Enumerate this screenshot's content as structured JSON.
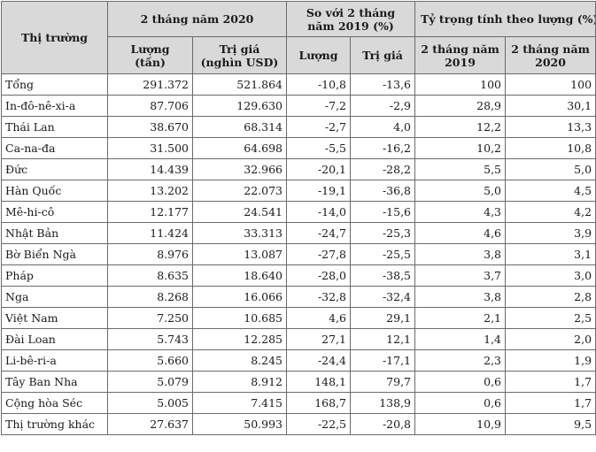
{
  "headers": {
    "market": "Thị trường",
    "period_2020": "2 tháng năm 2020",
    "compare": "So với 2 tháng năm 2019 (%)",
    "share": "Tỷ trọng tính theo lượng (%)",
    "volume": "Lượng (tấn)",
    "value": "Trị giá (nghìn USD)",
    "cmp_volume": "Lượng",
    "cmp_value": "Trị giá",
    "share_2019": "2 tháng năm 2019",
    "share_2020": "2 tháng năm 2020"
  },
  "rows": [
    {
      "name": "Tổng",
      "volume": "291.372",
      "value": "521.864",
      "cmp_volume": "-10,8",
      "cmp_value": "-13,6",
      "share_2019": "100",
      "share_2020": "100"
    },
    {
      "name": "In-đô-nê-xi-a",
      "volume": "87.706",
      "value": "129.630",
      "cmp_volume": "-7,2",
      "cmp_value": "-2,9",
      "share_2019": "28,9",
      "share_2020": "30,1"
    },
    {
      "name": "Thái Lan",
      "volume": "38.670",
      "value": "68.314",
      "cmp_volume": "-2,7",
      "cmp_value": "4,0",
      "share_2019": "12,2",
      "share_2020": "13,3"
    },
    {
      "name": "Ca-na-đa",
      "volume": "31.500",
      "value": "64.698",
      "cmp_volume": "-5,5",
      "cmp_value": "-16,2",
      "share_2019": "10,2",
      "share_2020": "10,8"
    },
    {
      "name": "Đức",
      "volume": "14.439",
      "value": "32.966",
      "cmp_volume": "-20,1",
      "cmp_value": "-28,2",
      "share_2019": "5,5",
      "share_2020": "5,0"
    },
    {
      "name": "Hàn Quốc",
      "volume": "13.202",
      "value": "22.073",
      "cmp_volume": "-19,1",
      "cmp_value": "-36,8",
      "share_2019": "5,0",
      "share_2020": "4,5"
    },
    {
      "name": "Mê-hi-cô",
      "volume": "12.177",
      "value": "24.541",
      "cmp_volume": "-14,0",
      "cmp_value": "-15,6",
      "share_2019": "4,3",
      "share_2020": "4,2"
    },
    {
      "name": "Nhật Bản",
      "volume": "11.424",
      "value": "33.313",
      "cmp_volume": "-24,7",
      "cmp_value": "-25,3",
      "share_2019": "4,6",
      "share_2020": "3,9"
    },
    {
      "name": "Bờ Biển Ngà",
      "volume": "8.976",
      "value": "13.087",
      "cmp_volume": "-27,8",
      "cmp_value": "-25,5",
      "share_2019": "3,8",
      "share_2020": "3,1"
    },
    {
      "name": "Pháp",
      "volume": "8.635",
      "value": "18.640",
      "cmp_volume": "-28,0",
      "cmp_value": "-38,5",
      "share_2019": "3,7",
      "share_2020": "3,0"
    },
    {
      "name": "Nga",
      "volume": "8.268",
      "value": "16.066",
      "cmp_volume": "-32,8",
      "cmp_value": "-32,4",
      "share_2019": "3,8",
      "share_2020": "2,8"
    },
    {
      "name": "Việt Nam",
      "volume": "7.250",
      "value": "10.685",
      "cmp_volume": "4,6",
      "cmp_value": "29,1",
      "share_2019": "2,1",
      "share_2020": "2,5"
    },
    {
      "name": "Đài Loan",
      "volume": "5.743",
      "value": "12.285",
      "cmp_volume": "27,1",
      "cmp_value": "12,1",
      "share_2019": "1,4",
      "share_2020": "2,0"
    },
    {
      "name": "Li-bê-ri-a",
      "volume": "5.660",
      "value": "8.245",
      "cmp_volume": "-24,4",
      "cmp_value": "-17,1",
      "share_2019": "2,3",
      "share_2020": "1,9"
    },
    {
      "name": "Tây Ban Nha",
      "volume": "5.079",
      "value": "8.912",
      "cmp_volume": "148,1",
      "cmp_value": "79,7",
      "share_2019": "0,6",
      "share_2020": "1,7"
    },
    {
      "name": "Cộng hòa Séc",
      "volume": "5.005",
      "value": "7.415",
      "cmp_volume": "168,7",
      "cmp_value": "138,9",
      "share_2019": "0,6",
      "share_2020": "1,7"
    },
    {
      "name": "Thị trường khác",
      "volume": "27.637",
      "value": "50.993",
      "cmp_volume": "-22,5",
      "cmp_value": "-20,8",
      "share_2019": "10,9",
      "share_2020": "9,5"
    }
  ]
}
